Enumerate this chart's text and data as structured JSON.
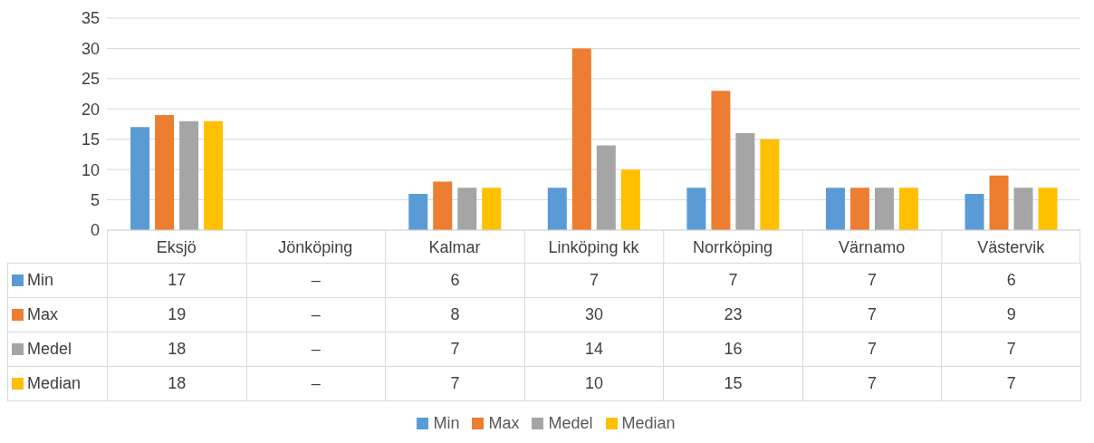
{
  "chart_data": {
    "type": "bar",
    "categories": [
      "Eksjö",
      "Jönköping",
      "Kalmar",
      "Linköping kk",
      "Norrköping",
      "Värnamo",
      "Västervik"
    ],
    "series": [
      {
        "name": "Min",
        "color": "#5b9bd5",
        "values": [
          17,
          null,
          6,
          7,
          7,
          7,
          6
        ],
        "value_labels": [
          "17",
          "–",
          "6",
          "7",
          "7",
          "7",
          "6"
        ]
      },
      {
        "name": "Max",
        "color": "#ed7d31",
        "values": [
          19,
          null,
          8,
          30,
          23,
          7,
          9
        ],
        "value_labels": [
          "19",
          "–",
          "8",
          "30",
          "23",
          "7",
          "9"
        ]
      },
      {
        "name": "Medel",
        "color": "#a5a5a5",
        "values": [
          18,
          null,
          7,
          14,
          16,
          7,
          7
        ],
        "value_labels": [
          "18",
          "–",
          "7",
          "14",
          "16",
          "7",
          "7"
        ]
      },
      {
        "name": "Median",
        "color": "#ffc000",
        "values": [
          18,
          null,
          7,
          10,
          15,
          7,
          7
        ],
        "value_labels": [
          "18",
          "–",
          "7",
          "10",
          "15",
          "7",
          "7"
        ]
      }
    ],
    "ylim": [
      0,
      35
    ],
    "yticks": [
      0,
      5,
      10,
      15,
      20,
      25,
      30,
      35
    ],
    "grid": "y",
    "legend": "bottom"
  }
}
